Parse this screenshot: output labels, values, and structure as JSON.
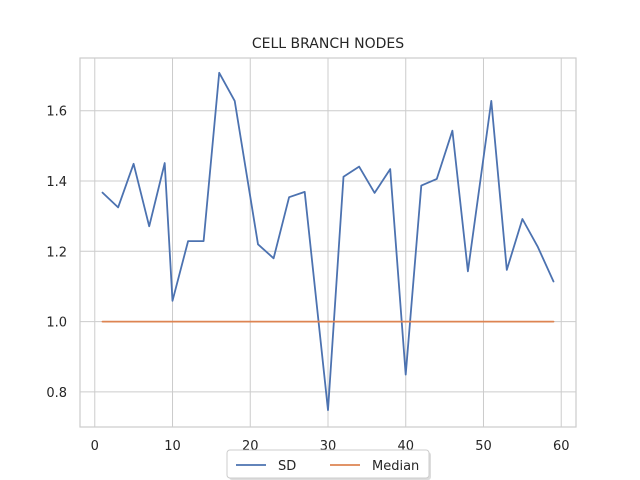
{
  "chart_data": {
    "type": "line",
    "title": "CELL BRANCH NODES",
    "xlabel": "",
    "ylabel": "",
    "xlim": [
      -1.9,
      61.9
    ],
    "ylim": [
      0.7,
      1.75
    ],
    "xticks": [
      0,
      10,
      20,
      30,
      40,
      50,
      60
    ],
    "yticks": [
      0.8,
      1.0,
      1.2,
      1.4,
      1.6
    ],
    "grid": true,
    "legend_position": "bottom-center",
    "series": [
      {
        "name": "SD",
        "color": "#4c72b0",
        "x": [
          1,
          3,
          5,
          7,
          9,
          10,
          12,
          14,
          16,
          18,
          21,
          23,
          25,
          27,
          30,
          32,
          34,
          36,
          38,
          40,
          42,
          44,
          46,
          48,
          51,
          53,
          55,
          57,
          59
        ],
        "y": [
          1.367,
          1.325,
          1.449,
          1.271,
          1.451,
          1.059,
          1.229,
          1.229,
          1.708,
          1.628,
          1.22,
          1.18,
          1.354,
          1.369,
          0.748,
          1.412,
          1.441,
          1.366,
          1.434,
          0.849,
          1.387,
          1.406,
          1.543,
          1.143,
          1.628,
          1.147,
          1.292,
          1.212,
          1.114
        ]
      },
      {
        "name": "Median",
        "color": "#dd8452",
        "x": [
          1,
          59
        ],
        "y": [
          1.0,
          1.0
        ]
      }
    ]
  }
}
